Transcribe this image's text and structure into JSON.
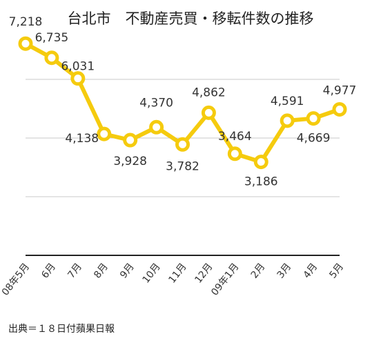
{
  "chart_data": {
    "type": "line",
    "title": "台北市　不動産売買・移転件数の推移",
    "categories": [
      "08年5月",
      "6月",
      "7月",
      "8月",
      "9月",
      "10月",
      "11月",
      "12月",
      "09年1月",
      "2月",
      "3月",
      "4月",
      "5月"
    ],
    "series": [
      {
        "values": [
          7218,
          6735,
          6031,
          4138,
          3928,
          4370,
          3782,
          4862,
          3464,
          3186,
          4591,
          4669,
          4977
        ]
      }
    ],
    "data_labels": [
      "7,218",
      "6,735",
      "6,031",
      "4,138",
      "3,928",
      "4,370",
      "3,782",
      "4,862",
      "3,464",
      "3,186",
      "4,591",
      "4,669",
      "4,977"
    ],
    "ylim": [
      0,
      8000
    ],
    "grid": true,
    "colors": {
      "line": "#f5cb0e",
      "marker_fill": "#ffffff",
      "grid": "#c8c8c8",
      "axis": "#222222"
    },
    "source_note": "出典＝１８日付蘋果日報"
  }
}
